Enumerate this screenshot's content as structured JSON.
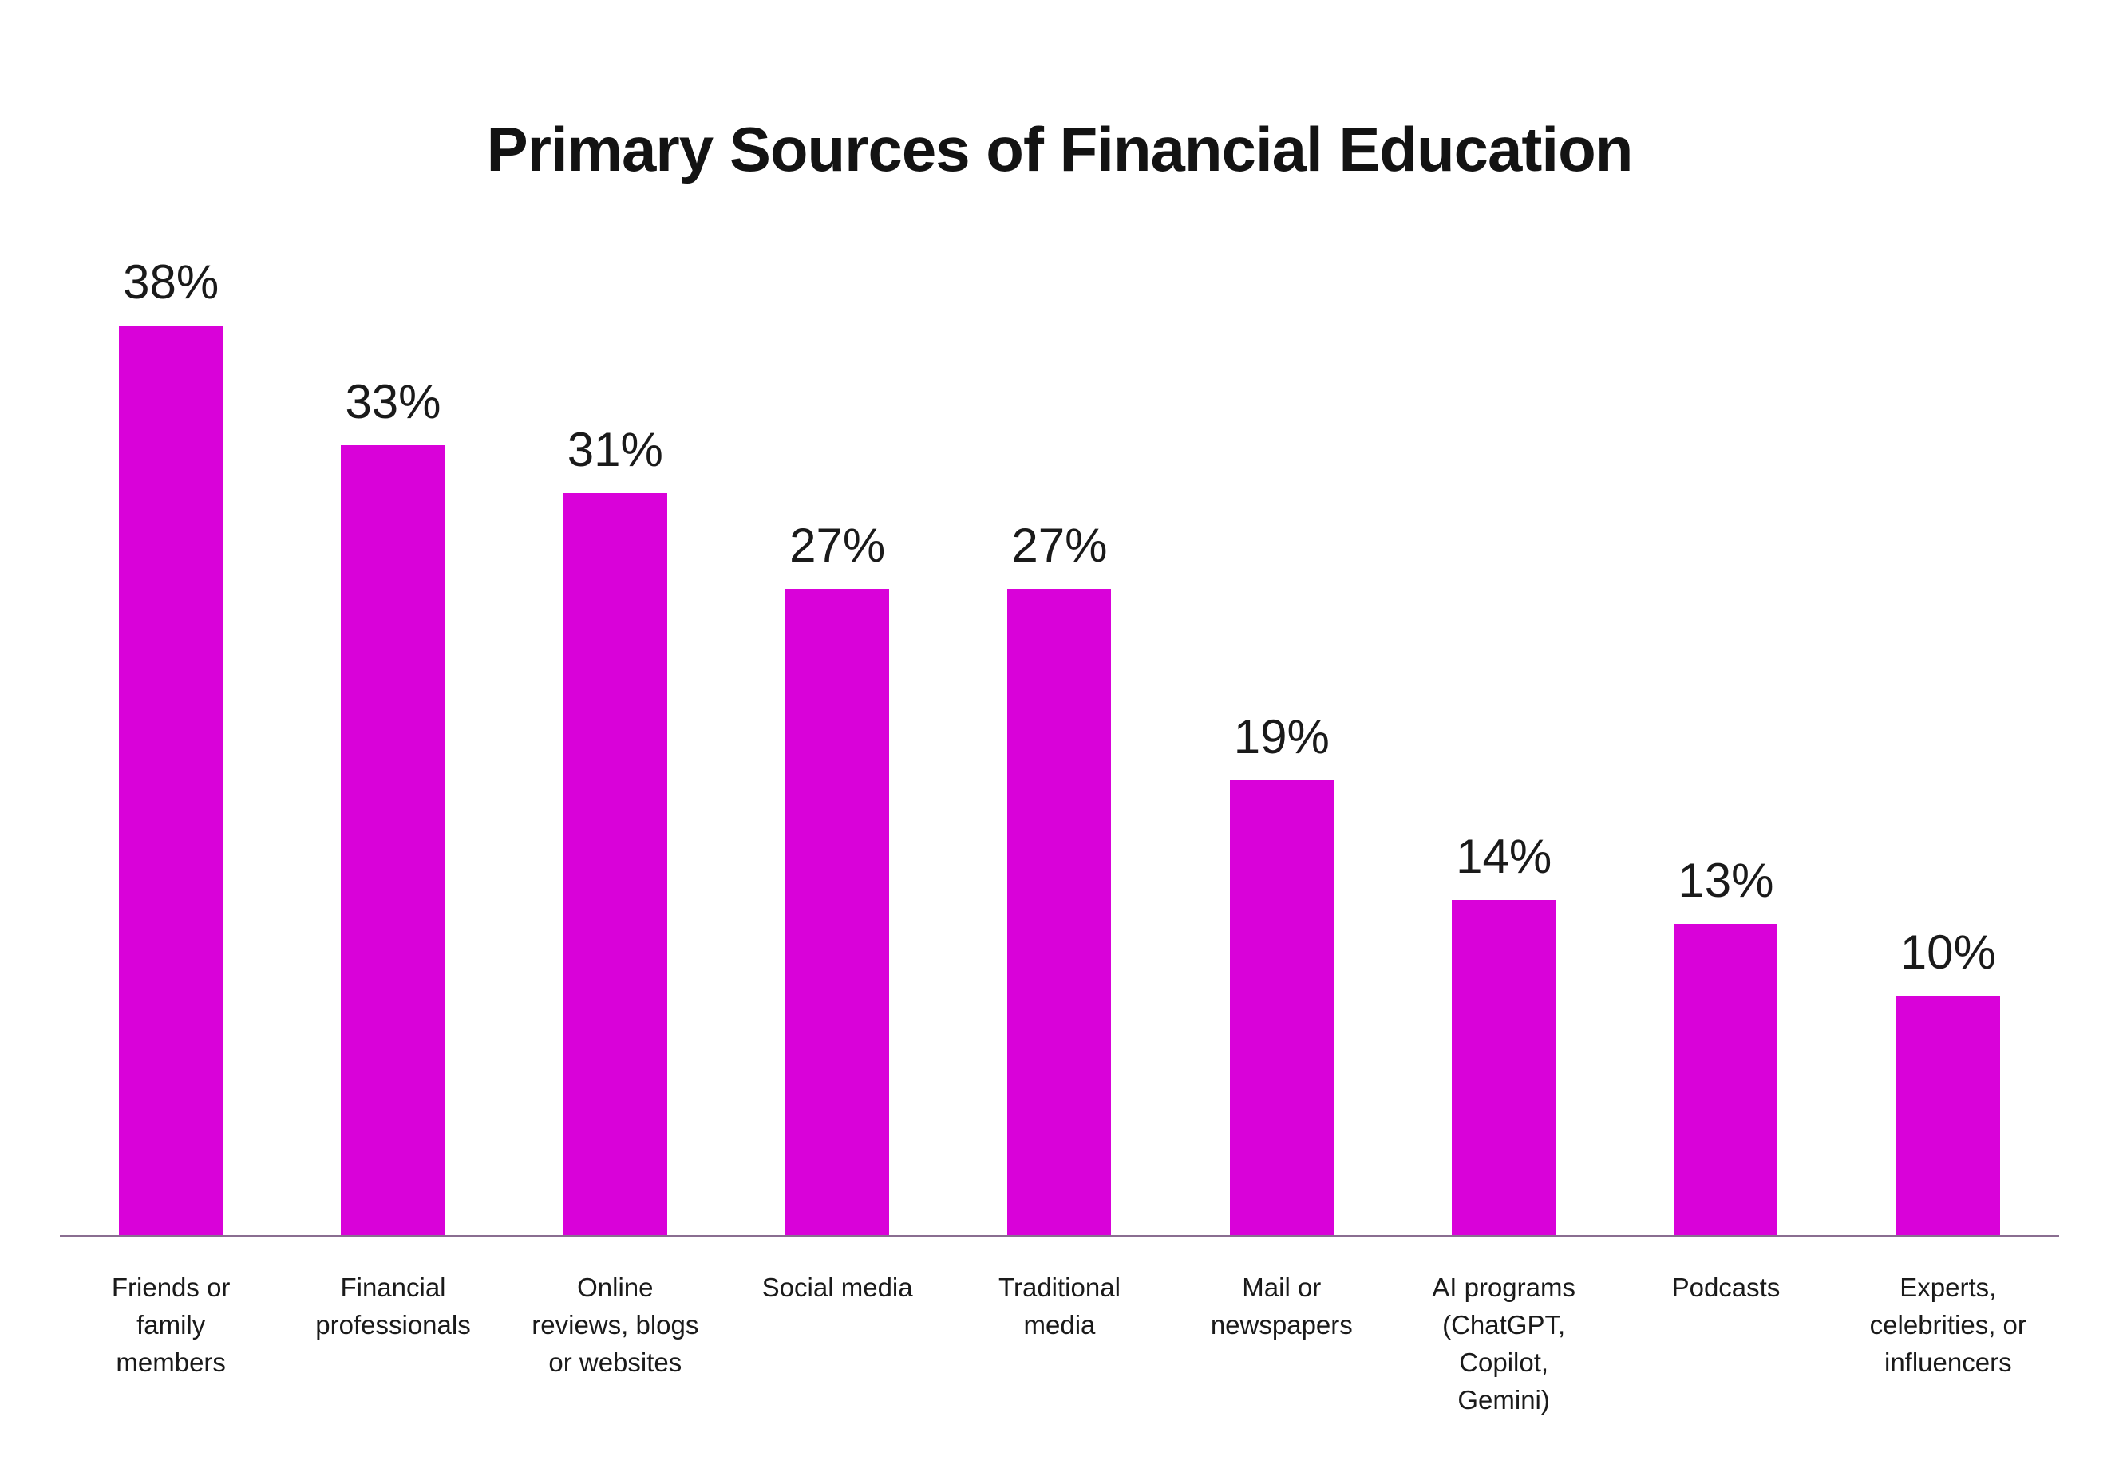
{
  "chart_data": {
    "type": "bar",
    "title": "Primary Sources of Financial Education",
    "categories": [
      "Friends or\nfamily\nmembers",
      "Financial\nprofessionals",
      "Online\nreviews, blogs\nor websites",
      "Social media",
      "Traditional\nmedia",
      "Mail or\nnewspapers",
      "AI programs\n(ChatGPT,\nCopilot,\nGemini)",
      "Podcasts",
      "Experts,\ncelebrities, or\ninfluencers"
    ],
    "values": [
      38,
      33,
      31,
      27,
      27,
      19,
      14,
      13,
      10
    ],
    "value_suffix": "%",
    "xlabel": "",
    "ylabel": "",
    "ylim": [
      0,
      40
    ],
    "grid": false,
    "legend": false,
    "bar_color": "#d902d9",
    "axis_color": "#8a6e91",
    "text_color": "#1a1a1a",
    "title_color": "#131313",
    "background_color": "#ffffff"
  }
}
